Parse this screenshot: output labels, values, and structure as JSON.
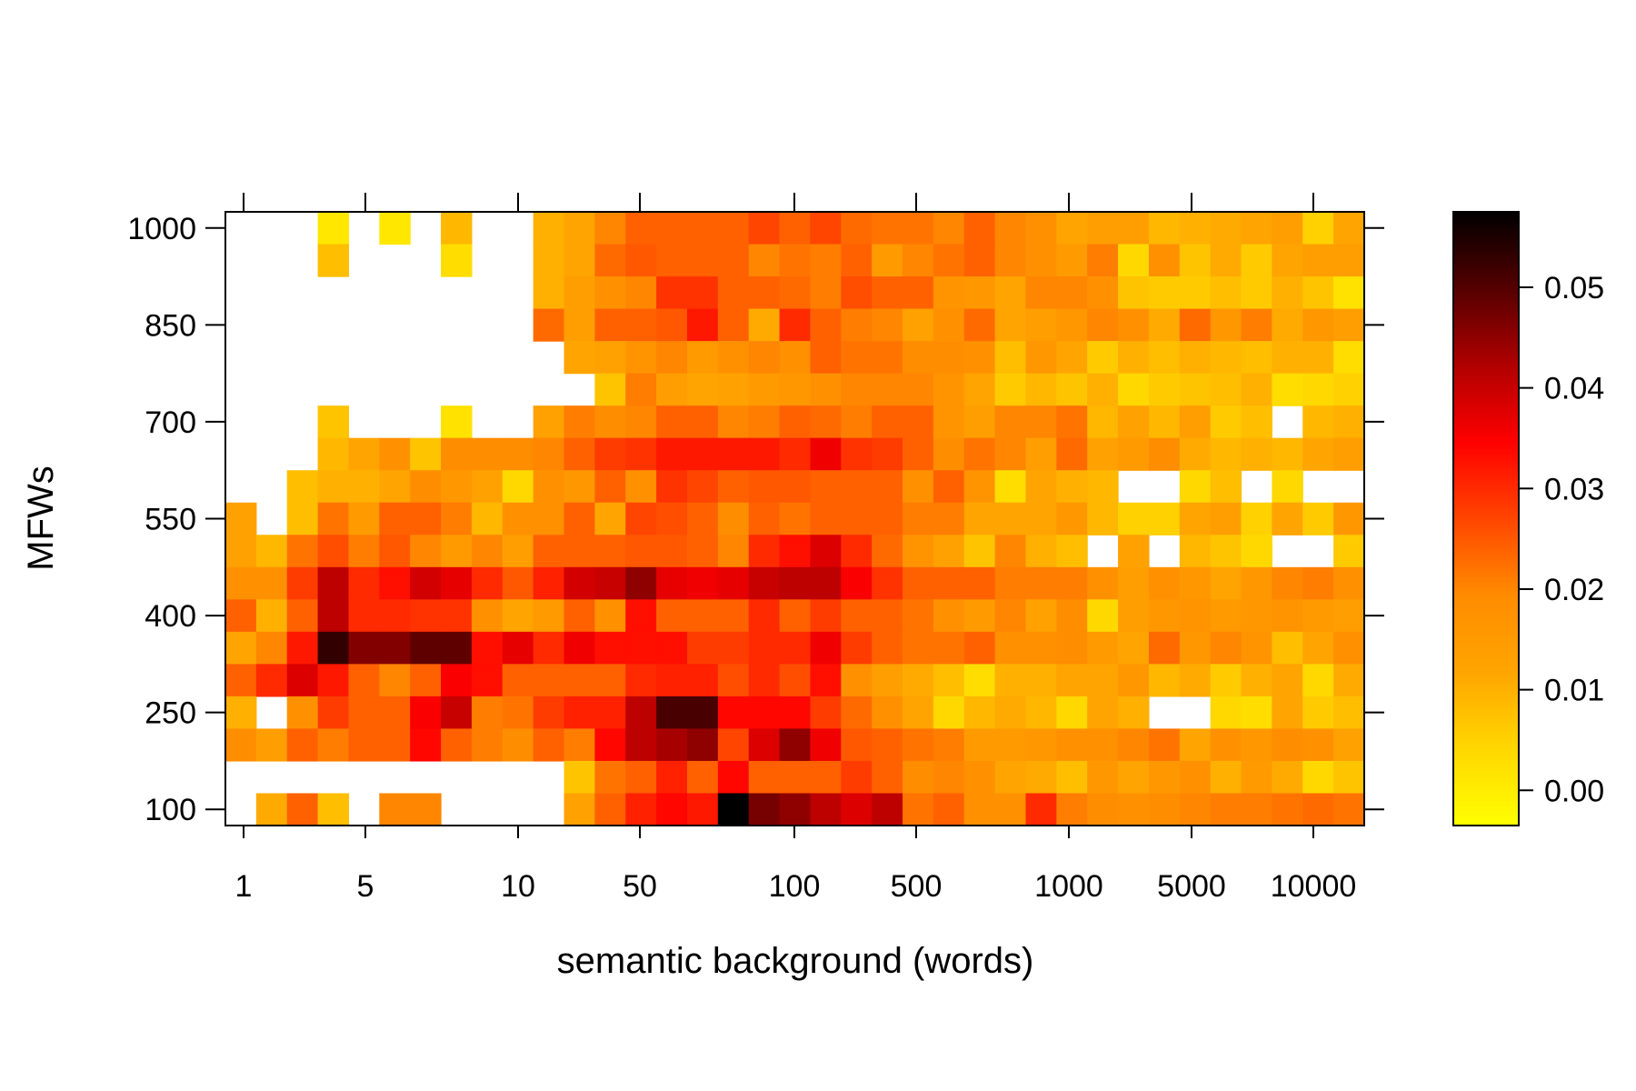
{
  "chart_data": {
    "type": "heatmap",
    "title": "",
    "xlabel": "semantic background (words)",
    "ylabel": "MFWs",
    "x_scale": "log-like (ordinal bins)",
    "x_tick_labels": [
      "1",
      "5",
      "10",
      "50",
      "100",
      "500",
      "1000",
      "5000",
      "10000"
    ],
    "y_tick_labels": [
      "1000",
      "850",
      "700",
      "550",
      "400",
      "250",
      "100"
    ],
    "colorbar_tick_labels": [
      "0.00",
      "0.01",
      "0.02",
      "0.03",
      "0.04",
      "0.05"
    ],
    "colorbar_range": [
      -0.0035,
      0.0575
    ],
    "colormap": [
      "#ffff00",
      "#ffd700",
      "#ffa500",
      "#ff8c00",
      "#ff4500",
      "#ff0000",
      "#b00000",
      "#550000",
      "#000000"
    ],
    "n_columns": 37,
    "y_values": [
      1000,
      950,
      900,
      850,
      800,
      750,
      700,
      650,
      600,
      550,
      500,
      450,
      400,
      350,
      300,
      250,
      200,
      150,
      100
    ],
    "missing_value": null,
    "values": [
      [
        null,
        null,
        null,
        0.001,
        null,
        0.001,
        null,
        0.009,
        null,
        null,
        0.01,
        0.012,
        0.02,
        0.024,
        0.024,
        0.024,
        0.024,
        0.027,
        0.024,
        0.027,
        0.023,
        0.022,
        0.022,
        0.02,
        0.024,
        0.02,
        0.018,
        0.012,
        0.014,
        0.014,
        0.009,
        0.01,
        0.011,
        0.012,
        0.014,
        0.005,
        0.012
      ],
      [
        null,
        null,
        null,
        0.008,
        null,
        null,
        null,
        0.003,
        null,
        null,
        0.01,
        0.012,
        0.023,
        0.025,
        0.024,
        0.024,
        0.024,
        0.02,
        0.022,
        0.021,
        0.024,
        0.015,
        0.02,
        0.022,
        0.024,
        0.02,
        0.018,
        0.015,
        0.021,
        0.004,
        0.018,
        0.007,
        0.011,
        0.006,
        0.012,
        0.014,
        0.014
      ],
      [
        null,
        null,
        null,
        null,
        null,
        null,
        null,
        null,
        null,
        null,
        0.01,
        0.014,
        0.018,
        0.02,
        0.029,
        0.029,
        0.024,
        0.024,
        0.023,
        0.021,
        0.026,
        0.024,
        0.024,
        0.017,
        0.016,
        0.012,
        0.02,
        0.02,
        0.018,
        0.007,
        0.006,
        0.006,
        0.008,
        0.006,
        0.01,
        0.007,
        0.002
      ],
      [
        null,
        null,
        null,
        null,
        null,
        null,
        null,
        null,
        null,
        null,
        0.023,
        0.014,
        0.024,
        0.024,
        0.025,
        0.032,
        0.024,
        0.011,
        0.03,
        0.024,
        0.021,
        0.02,
        0.013,
        0.018,
        0.023,
        0.012,
        0.014,
        0.016,
        0.02,
        0.018,
        0.011,
        0.023,
        0.016,
        0.021,
        0.011,
        0.016,
        0.014
      ],
      [
        null,
        null,
        null,
        null,
        null,
        null,
        null,
        null,
        null,
        null,
        null,
        0.012,
        0.013,
        0.017,
        0.02,
        0.015,
        0.018,
        0.02,
        0.018,
        0.024,
        0.022,
        0.022,
        0.019,
        0.019,
        0.018,
        0.008,
        0.016,
        0.012,
        0.006,
        0.01,
        0.008,
        0.01,
        0.009,
        0.008,
        0.01,
        0.01,
        0.003
      ],
      [
        null,
        null,
        null,
        null,
        null,
        null,
        null,
        null,
        null,
        null,
        null,
        null,
        0.007,
        0.021,
        0.014,
        0.012,
        0.013,
        0.015,
        0.016,
        0.018,
        0.02,
        0.02,
        0.02,
        0.017,
        0.012,
        0.006,
        0.009,
        0.007,
        0.01,
        0.004,
        0.006,
        0.007,
        0.008,
        0.01,
        0.003,
        0.004,
        0.005
      ],
      [
        null,
        null,
        null,
        0.007,
        null,
        null,
        null,
        0.002,
        null,
        null,
        0.013,
        0.021,
        0.019,
        0.02,
        0.024,
        0.024,
        0.02,
        0.021,
        0.024,
        0.023,
        0.021,
        0.024,
        0.024,
        0.017,
        0.014,
        0.02,
        0.02,
        0.022,
        0.009,
        0.013,
        0.009,
        0.014,
        0.006,
        0.008,
        null,
        0.009,
        0.01
      ],
      [
        null,
        null,
        null,
        0.009,
        0.012,
        0.018,
        0.007,
        0.019,
        0.019,
        0.019,
        0.02,
        0.024,
        0.028,
        0.029,
        0.032,
        0.032,
        0.032,
        0.032,
        0.03,
        0.036,
        0.029,
        0.028,
        0.024,
        0.019,
        0.022,
        0.02,
        0.014,
        0.023,
        0.013,
        0.015,
        0.019,
        0.011,
        0.009,
        0.01,
        0.009,
        0.012,
        0.014
      ],
      [
        null,
        null,
        0.008,
        0.01,
        0.01,
        0.012,
        0.019,
        0.016,
        0.013,
        0.004,
        0.018,
        0.016,
        0.024,
        0.018,
        0.029,
        0.027,
        0.024,
        0.025,
        0.025,
        0.024,
        0.024,
        0.024,
        0.018,
        0.024,
        0.017,
        0.003,
        0.012,
        0.01,
        0.009,
        null,
        null,
        0.004,
        0.008,
        null,
        0.004,
        null,
        null
      ],
      [
        0.013,
        null,
        0.008,
        0.022,
        0.015,
        0.024,
        0.024,
        0.021,
        0.009,
        0.018,
        0.018,
        0.024,
        0.012,
        0.027,
        0.026,
        0.024,
        0.019,
        0.024,
        0.022,
        0.024,
        0.024,
        0.024,
        0.021,
        0.021,
        0.012,
        0.012,
        0.012,
        0.016,
        0.009,
        0.005,
        0.005,
        0.012,
        0.014,
        0.005,
        0.012,
        0.006,
        0.016
      ],
      [
        0.013,
        0.009,
        0.022,
        0.026,
        0.021,
        0.025,
        0.02,
        0.015,
        0.02,
        0.014,
        0.024,
        0.024,
        0.024,
        0.025,
        0.025,
        0.024,
        0.02,
        0.03,
        0.033,
        0.038,
        0.03,
        0.023,
        0.017,
        0.013,
        0.007,
        0.02,
        0.01,
        0.008,
        null,
        0.013,
        null,
        0.009,
        0.007,
        0.004,
        null,
        null,
        0.006
      ],
      [
        0.018,
        0.018,
        0.028,
        0.041,
        0.03,
        0.033,
        0.039,
        0.037,
        0.03,
        0.025,
        0.031,
        0.039,
        0.04,
        0.045,
        0.037,
        0.036,
        0.037,
        0.04,
        0.041,
        0.041,
        0.035,
        0.029,
        0.024,
        0.024,
        0.024,
        0.021,
        0.021,
        0.021,
        0.018,
        0.014,
        0.018,
        0.016,
        0.012,
        0.016,
        0.02,
        0.021,
        0.018
      ],
      [
        0.024,
        0.01,
        0.024,
        0.041,
        0.03,
        0.03,
        0.029,
        0.029,
        0.018,
        0.012,
        0.015,
        0.024,
        0.018,
        0.033,
        0.024,
        0.024,
        0.024,
        0.03,
        0.024,
        0.028,
        0.024,
        0.024,
        0.022,
        0.018,
        0.015,
        0.02,
        0.013,
        0.019,
        0.004,
        0.014,
        0.016,
        0.017,
        0.015,
        0.016,
        0.017,
        0.015,
        0.014
      ],
      [
        0.012,
        0.02,
        0.032,
        0.053,
        0.046,
        0.046,
        0.049,
        0.049,
        0.033,
        0.037,
        0.03,
        0.036,
        0.033,
        0.033,
        0.033,
        0.028,
        0.028,
        0.03,
        0.03,
        0.036,
        0.028,
        0.024,
        0.022,
        0.022,
        0.024,
        0.018,
        0.018,
        0.019,
        0.015,
        0.012,
        0.023,
        0.016,
        0.02,
        0.017,
        0.008,
        0.012,
        0.018
      ],
      [
        0.024,
        0.03,
        0.038,
        0.032,
        0.024,
        0.02,
        0.024,
        0.035,
        0.033,
        0.024,
        0.024,
        0.024,
        0.024,
        0.03,
        0.031,
        0.031,
        0.026,
        0.03,
        0.026,
        0.033,
        0.018,
        0.014,
        0.011,
        0.008,
        0.003,
        0.01,
        0.01,
        0.012,
        0.012,
        0.016,
        0.009,
        0.011,
        0.006,
        0.01,
        0.012,
        0.004,
        0.011
      ],
      [
        0.01,
        null,
        0.018,
        0.028,
        0.024,
        0.024,
        0.035,
        0.04,
        0.021,
        0.022,
        0.028,
        0.031,
        0.031,
        0.041,
        0.051,
        0.051,
        0.034,
        0.034,
        0.034,
        0.028,
        0.023,
        0.018,
        0.012,
        0.004,
        0.009,
        0.011,
        0.009,
        0.004,
        0.012,
        0.01,
        null,
        null,
        0.004,
        0.003,
        0.012,
        0.006,
        0.008
      ],
      [
        0.019,
        0.014,
        0.024,
        0.021,
        0.024,
        0.024,
        0.034,
        0.024,
        0.021,
        0.019,
        0.024,
        0.021,
        0.034,
        0.041,
        0.043,
        0.045,
        0.027,
        0.038,
        0.045,
        0.036,
        0.025,
        0.024,
        0.022,
        0.021,
        0.015,
        0.015,
        0.016,
        0.018,
        0.018,
        0.02,
        0.022,
        0.012,
        0.018,
        0.016,
        0.019,
        0.018,
        0.013
      ],
      [
        null,
        null,
        null,
        null,
        null,
        null,
        null,
        null,
        null,
        null,
        null,
        0.007,
        0.022,
        0.024,
        0.031,
        0.024,
        0.034,
        0.024,
        0.024,
        0.024,
        0.028,
        0.024,
        0.019,
        0.02,
        0.018,
        0.012,
        0.011,
        0.008,
        0.016,
        0.012,
        0.016,
        0.018,
        0.01,
        0.015,
        0.011,
        0.004,
        0.007
      ],
      [
        null,
        0.011,
        0.024,
        0.008,
        null,
        0.02,
        0.02,
        null,
        null,
        null,
        null,
        0.013,
        0.024,
        0.031,
        0.034,
        0.032,
        0.058,
        0.047,
        0.045,
        0.041,
        0.038,
        0.041,
        0.022,
        0.024,
        0.018,
        0.018,
        0.03,
        0.021,
        0.019,
        0.018,
        0.019,
        0.02,
        0.021,
        0.021,
        0.022,
        0.023,
        0.022
      ]
    ]
  }
}
